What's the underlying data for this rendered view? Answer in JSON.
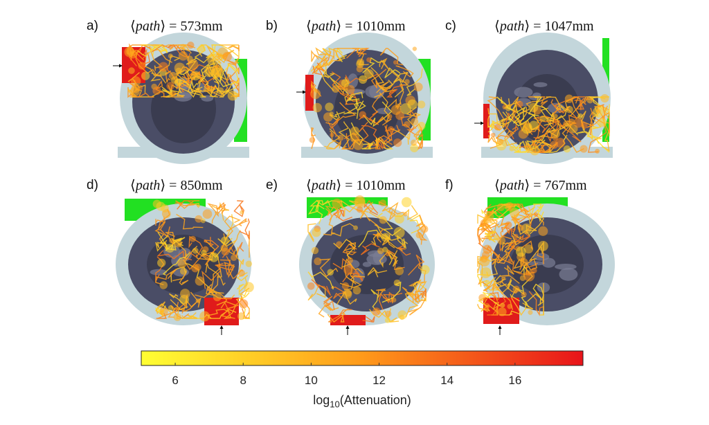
{
  "panels": [
    {
      "letter": "a)",
      "title_var": "path",
      "title_value": "573mm",
      "view": "coronal",
      "source_side": "left",
      "paths_region": "top"
    },
    {
      "letter": "b)",
      "title_var": "path",
      "title_value": "1010mm",
      "view": "coronal",
      "source_side": "left",
      "paths_region": "full"
    },
    {
      "letter": "c)",
      "title_var": "path",
      "title_value": "1047mm",
      "view": "coronal",
      "source_side": "left",
      "paths_region": "bottom"
    },
    {
      "letter": "d)",
      "title_var": "path",
      "title_value": "850mm",
      "view": "axial",
      "source_side": "bottom",
      "paths_region": "right"
    },
    {
      "letter": "e)",
      "title_var": "path",
      "title_value": "1010mm",
      "view": "axial",
      "source_side": "bottom",
      "paths_region": "full"
    },
    {
      "letter": "f)",
      "title_var": "path",
      "title_value": "767mm",
      "view": "axial",
      "source_side": "bottom",
      "paths_region": "left"
    }
  ],
  "colorbar": {
    "label_base": "log",
    "label_sub": "10",
    "label_rest": "(Attenuation)",
    "range": [
      5,
      18
    ],
    "ticks": [
      "6",
      "8",
      "10",
      "12",
      "14",
      "16"
    ],
    "colors": [
      "#ffff33",
      "#ff9a1a",
      "#e8141a"
    ]
  },
  "colors": {
    "source": "#e01b1b",
    "detector": "#22e022",
    "scalp": "#c3d6db",
    "brain": "#4a4d66",
    "csf": "#2a2b3a"
  }
}
